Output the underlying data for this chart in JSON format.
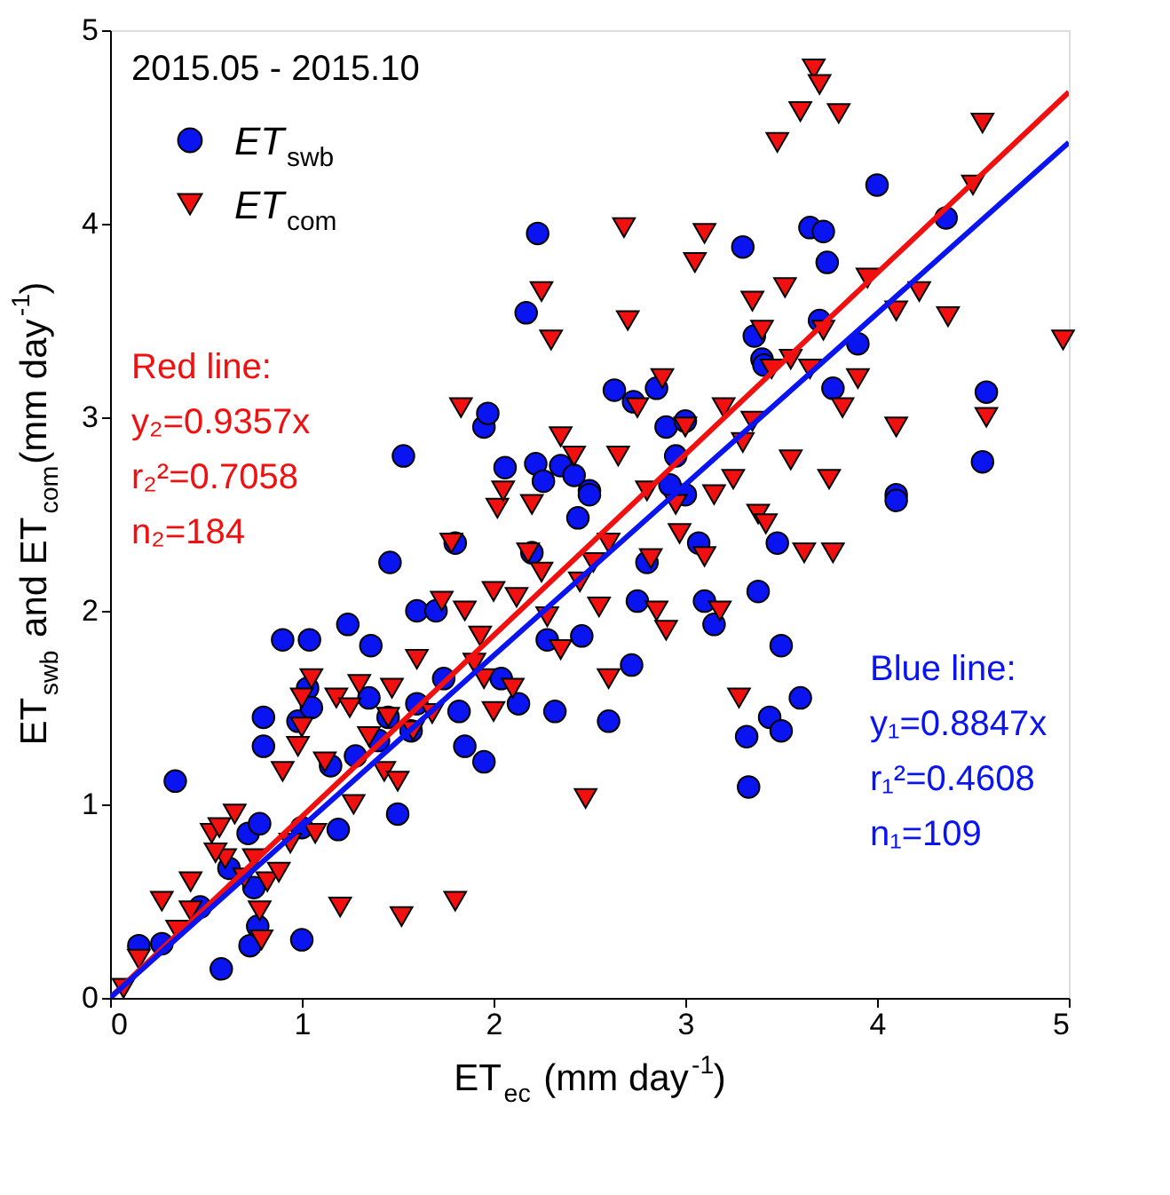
{
  "chart_data": {
    "type": "scatter",
    "xlabel": "ET$_{ec}$ (mm day$^{-1}$)",
    "ylabel": "ET$_{swb}$ and ET$_{com}$(mm day$^{-1}$)",
    "xlim": [
      0,
      5
    ],
    "ylim": [
      0,
      5
    ],
    "xticks": [
      0,
      1,
      2,
      3,
      4,
      5
    ],
    "yticks": [
      0,
      1,
      2,
      3,
      4,
      5
    ],
    "grid": false,
    "legend": "top left",
    "annotations": [
      "2015.05 - 2015.10",
      "Red line:\ny₂=0.9357x\nr₂²=0.7058\nn₂=184",
      "Blue line:\ny₁=0.8847x\nr₁²=0.4608\nn₁=109"
    ],
    "series": [
      {
        "name": "ET$_{swb}$",
        "marker": "circle",
        "color": "#0a14f0",
        "x": [
          0.15,
          0.27,
          0.34,
          0.47,
          0.58,
          0.62,
          0.72,
          0.73,
          0.77,
          0.78,
          0.8,
          0.8,
          0.75,
          0.9,
          0.98,
          1.0,
          1.0,
          1.03,
          1.04,
          1.05,
          1.19,
          1.24,
          1.28,
          1.35,
          1.36,
          1.45,
          1.46,
          1.5,
          1.53,
          1.57,
          1.6,
          1.6,
          1.7,
          1.74,
          1.8,
          1.82,
          1.85,
          1.95,
          1.95,
          1.97,
          2.04,
          2.06,
          2.13,
          2.17,
          2.23,
          2.22,
          2.26,
          2.28,
          2.32,
          2.35,
          2.42,
          2.44,
          2.5,
          2.46,
          2.6,
          2.63,
          2.72,
          2.75,
          2.73,
          2.8,
          2.85,
          2.9,
          2.95,
          3.0,
          3.0,
          3.07,
          3.1,
          3.15,
          3.3,
          3.32,
          3.33,
          3.36,
          3.4,
          3.38,
          3.41,
          3.44,
          3.48,
          3.5,
          3.5,
          3.6,
          3.65,
          3.72,
          3.74,
          3.7,
          3.77,
          3.9,
          4.0,
          4.1,
          4.1,
          4.36,
          4.55,
          4.57,
          2.5,
          2.2,
          1.4,
          1.15,
          2.92
        ],
        "values": [
          0.27,
          0.28,
          1.12,
          0.47,
          0.15,
          0.67,
          0.85,
          0.27,
          0.37,
          0.9,
          1.45,
          1.3,
          0.57,
          1.85,
          1.43,
          0.88,
          0.3,
          1.6,
          1.85,
          1.5,
          0.87,
          1.93,
          1.25,
          1.55,
          1.82,
          1.45,
          2.25,
          0.95,
          2.8,
          1.38,
          2.0,
          1.52,
          2.0,
          1.65,
          2.35,
          1.48,
          1.3,
          2.95,
          1.22,
          3.02,
          1.65,
          2.74,
          1.52,
          3.54,
          3.95,
          2.76,
          2.67,
          1.85,
          1.48,
          2.75,
          2.7,
          2.48,
          2.62,
          1.87,
          1.43,
          3.14,
          1.72,
          2.05,
          3.08,
          2.25,
          3.15,
          2.95,
          2.8,
          2.6,
          2.98,
          2.35,
          2.05,
          1.93,
          3.88,
          1.35,
          1.09,
          3.42,
          3.3,
          2.1,
          3.27,
          1.45,
          2.35,
          1.82,
          1.38,
          1.55,
          3.98,
          3.96,
          3.8,
          3.5,
          3.15,
          3.38,
          4.2,
          2.6,
          2.57,
          4.03,
          2.77,
          3.13,
          2.6,
          2.3,
          1.33,
          1.2,
          2.65
        ]
      },
      {
        "name": "ET$_{com}$",
        "marker": "triangle",
        "color": "#f01010",
        "x": [
          0.07,
          0.15,
          0.27,
          0.35,
          0.42,
          0.42,
          0.53,
          0.57,
          0.6,
          0.65,
          0.7,
          0.75,
          0.78,
          0.79,
          0.82,
          0.88,
          0.9,
          0.94,
          0.98,
          1.0,
          1.05,
          1.07,
          1.12,
          1.18,
          1.2,
          1.27,
          1.3,
          1.35,
          1.43,
          1.47,
          1.5,
          1.52,
          1.58,
          1.6,
          1.68,
          1.73,
          1.8,
          1.83,
          1.85,
          1.9,
          1.93,
          1.95,
          2.0,
          2.02,
          2.05,
          2.1,
          2.12,
          2.18,
          2.2,
          2.25,
          2.25,
          2.3,
          2.35,
          2.35,
          2.42,
          2.48,
          2.52,
          2.55,
          2.6,
          2.65,
          2.68,
          2.7,
          2.75,
          2.8,
          2.82,
          2.85,
          2.88,
          2.9,
          2.95,
          2.97,
          3.05,
          3.1,
          3.1,
          3.15,
          3.2,
          3.25,
          3.28,
          3.3,
          3.35,
          3.38,
          3.4,
          3.45,
          3.48,
          3.52,
          3.55,
          3.6,
          3.65,
          3.67,
          3.7,
          3.72,
          3.77,
          3.8,
          3.82,
          3.9,
          3.95,
          4.1,
          4.22,
          4.37,
          4.5,
          4.55,
          4.57,
          4.97,
          3.75,
          3.55,
          3.0,
          2.6,
          1.0,
          1.25,
          1.45,
          0.55,
          2.45,
          2.28,
          3.35,
          2.0,
          1.78,
          4.1,
          3.42,
          3.62,
          3.18
        ],
        "values": [
          0.05,
          0.2,
          0.5,
          0.35,
          0.45,
          0.6,
          0.85,
          0.88,
          0.72,
          0.95,
          0.62,
          0.72,
          0.45,
          0.3,
          0.6,
          0.65,
          1.17,
          0.8,
          1.3,
          1.55,
          1.65,
          0.85,
          1.22,
          1.55,
          0.47,
          1.0,
          1.62,
          1.35,
          1.17,
          1.6,
          1.12,
          0.42,
          1.38,
          1.75,
          1.47,
          2.05,
          0.5,
          3.05,
          2.0,
          1.73,
          1.87,
          1.65,
          1.48,
          2.53,
          2.62,
          1.6,
          2.07,
          2.3,
          2.55,
          2.2,
          3.65,
          3.4,
          2.9,
          1.8,
          2.8,
          1.03,
          2.25,
          2.02,
          1.65,
          2.8,
          3.98,
          3.5,
          3.05,
          2.62,
          2.27,
          2.0,
          3.2,
          1.9,
          2.55,
          2.4,
          3.8,
          3.95,
          2.28,
          2.6,
          3.05,
          2.68,
          1.55,
          2.87,
          3.6,
          2.5,
          3.45,
          3.25,
          4.42,
          3.67,
          3.3,
          4.58,
          3.25,
          4.8,
          4.72,
          3.45,
          2.3,
          4.57,
          3.05,
          3.2,
          3.72,
          3.55,
          3.65,
          3.52,
          4.2,
          4.52,
          3.0,
          3.4,
          2.68,
          2.78,
          2.95,
          2.35,
          1.4,
          1.5,
          1.45,
          0.75,
          2.15,
          1.97,
          2.98,
          2.1,
          2.35,
          2.95,
          2.45,
          2.3,
          2.0
        ]
      },
      {
        "type": "line",
        "marker": "none",
        "line_style": "solid",
        "color": "#f01010",
        "x": [
          0,
          5
        ],
        "values": [
          0,
          4.68
        ]
      },
      {
        "type": "line",
        "marker": "none",
        "line_style": "solid",
        "color": "#0a14f0",
        "x": [
          0,
          5
        ],
        "values": [
          0,
          4.42
        ]
      }
    ]
  }
}
